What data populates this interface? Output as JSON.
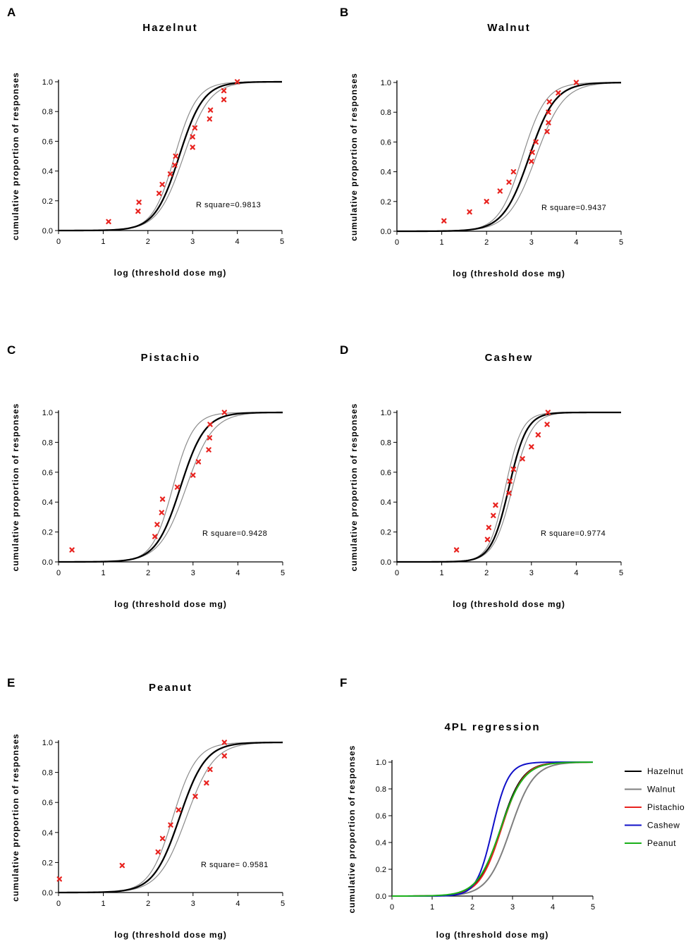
{
  "chart_data": [
    {
      "id": "A",
      "type": "scatter",
      "title": "Hazelnut",
      "xlabel": "log (threshold dose mg)",
      "ylabel": "cumulative proportion of responses",
      "xlim": [
        0,
        5
      ],
      "ylim": [
        0,
        1
      ],
      "xticks": [
        "0",
        "1",
        "2",
        "3",
        "4",
        "5"
      ],
      "yticks": [
        "0.0",
        "0.2",
        "0.4",
        "0.6",
        "0.8",
        "1.0"
      ],
      "annotation": "R square=0.9813",
      "fit": {
        "ec50": 2.7,
        "slope": 1.6
      },
      "ci": [
        {
          "ec50": 2.6,
          "slope": 1.75
        },
        {
          "ec50": 2.8,
          "slope": 1.5
        }
      ],
      "points": [
        {
          "x": 1.12,
          "y": 0.06
        },
        {
          "x": 1.78,
          "y": 0.13
        },
        {
          "x": 1.8,
          "y": 0.19
        },
        {
          "x": 2.25,
          "y": 0.25
        },
        {
          "x": 2.32,
          "y": 0.31
        },
        {
          "x": 2.5,
          "y": 0.38
        },
        {
          "x": 2.6,
          "y": 0.44
        },
        {
          "x": 2.62,
          "y": 0.5
        },
        {
          "x": 3.0,
          "y": 0.56
        },
        {
          "x": 3.0,
          "y": 0.63
        },
        {
          "x": 3.05,
          "y": 0.69
        },
        {
          "x": 3.38,
          "y": 0.75
        },
        {
          "x": 3.4,
          "y": 0.81
        },
        {
          "x": 3.7,
          "y": 0.88
        },
        {
          "x": 3.7,
          "y": 0.94
        },
        {
          "x": 4.0,
          "y": 1.0
        }
      ]
    },
    {
      "id": "B",
      "type": "scatter",
      "title": "Walnut",
      "xlabel": "log (threshold dose mg)",
      "ylabel": "cumulative proportion of responses",
      "xlim": [
        0,
        5
      ],
      "ylim": [
        0,
        1
      ],
      "xticks": [
        "0",
        "1",
        "2",
        "3",
        "4",
        "5"
      ],
      "yticks": [
        "0.0",
        "0.2",
        "0.4",
        "0.6",
        "0.8",
        "1.0"
      ],
      "annotation": "R square=0.9437",
      "fit": {
        "ec50": 2.95,
        "slope": 1.5
      },
      "ci": [
        {
          "ec50": 2.8,
          "slope": 1.65
        },
        {
          "ec50": 3.1,
          "slope": 1.4
        }
      ],
      "points": [
        {
          "x": 1.05,
          "y": 0.07
        },
        {
          "x": 1.62,
          "y": 0.13
        },
        {
          "x": 2.0,
          "y": 0.2
        },
        {
          "x": 2.3,
          "y": 0.27
        },
        {
          "x": 2.5,
          "y": 0.33
        },
        {
          "x": 2.6,
          "y": 0.4
        },
        {
          "x": 3.0,
          "y": 0.47
        },
        {
          "x": 3.02,
          "y": 0.53
        },
        {
          "x": 3.1,
          "y": 0.6
        },
        {
          "x": 3.35,
          "y": 0.67
        },
        {
          "x": 3.38,
          "y": 0.73
        },
        {
          "x": 3.38,
          "y": 0.8
        },
        {
          "x": 3.4,
          "y": 0.87
        },
        {
          "x": 3.6,
          "y": 0.93
        },
        {
          "x": 4.0,
          "y": 1.0
        }
      ]
    },
    {
      "id": "C",
      "type": "scatter",
      "title": "Pistachio",
      "xlabel": "log (threshold dose mg)",
      "ylabel": "cumulative proportion of responses",
      "xlim": [
        0,
        5
      ],
      "ylim": [
        0,
        1
      ],
      "xticks": [
        "0",
        "1",
        "2",
        "3",
        "4",
        "5"
      ],
      "yticks": [
        "0.0",
        "0.2",
        "0.4",
        "0.6",
        "0.8",
        "1.0"
      ],
      "annotation": "R square=0.9428",
      "fit": {
        "ec50": 2.72,
        "slope": 1.6
      },
      "ci": [
        {
          "ec50": 2.55,
          "slope": 1.9
        },
        {
          "ec50": 2.85,
          "slope": 1.45
        }
      ],
      "points": [
        {
          "x": 0.3,
          "y": 0.08
        },
        {
          "x": 2.15,
          "y": 0.17
        },
        {
          "x": 2.2,
          "y": 0.25
        },
        {
          "x": 2.3,
          "y": 0.33
        },
        {
          "x": 2.32,
          "y": 0.42
        },
        {
          "x": 2.65,
          "y": 0.5
        },
        {
          "x": 3.0,
          "y": 0.58
        },
        {
          "x": 3.12,
          "y": 0.67
        },
        {
          "x": 3.35,
          "y": 0.75
        },
        {
          "x": 3.37,
          "y": 0.83
        },
        {
          "x": 3.38,
          "y": 0.92
        },
        {
          "x": 3.7,
          "y": 1.0
        }
      ]
    },
    {
      "id": "D",
      "type": "scatter",
      "title": "Cashew",
      "xlabel": "log (threshold dose mg)",
      "ylabel": "cumulative proportion of responses",
      "xlim": [
        0,
        5
      ],
      "ylim": [
        0,
        1
      ],
      "xticks": [
        "0",
        "1",
        "2",
        "3",
        "4",
        "5"
      ],
      "yticks": [
        "0.0",
        "0.2",
        "0.4",
        "0.6",
        "0.8",
        "1.0"
      ],
      "annotation": "R square=0.9774",
      "fit": {
        "ec50": 2.5,
        "slope": 2.2
      },
      "ci": [
        {
          "ec50": 2.42,
          "slope": 2.35
        },
        {
          "ec50": 2.58,
          "slope": 2.05
        }
      ],
      "points": [
        {
          "x": 1.33,
          "y": 0.08
        },
        {
          "x": 2.02,
          "y": 0.15
        },
        {
          "x": 2.05,
          "y": 0.23
        },
        {
          "x": 2.15,
          "y": 0.31
        },
        {
          "x": 2.2,
          "y": 0.38
        },
        {
          "x": 2.5,
          "y": 0.46
        },
        {
          "x": 2.52,
          "y": 0.54
        },
        {
          "x": 2.6,
          "y": 0.62
        },
        {
          "x": 2.8,
          "y": 0.69
        },
        {
          "x": 3.0,
          "y": 0.77
        },
        {
          "x": 3.15,
          "y": 0.85
        },
        {
          "x": 3.35,
          "y": 0.92
        },
        {
          "x": 3.37,
          "y": 1.0
        }
      ]
    },
    {
      "id": "E",
      "type": "scatter",
      "title": "Peanut",
      "xlabel": "log (threshold dose mg)",
      "ylabel": "cumulative proportion of responses",
      "xlim": [
        0,
        5
      ],
      "ylim": [
        0,
        1
      ],
      "xticks": [
        "0",
        "1",
        "2",
        "3",
        "4",
        "5"
      ],
      "yticks": [
        "0.0",
        "0.2",
        "0.4",
        "0.6",
        "0.8",
        "1.0"
      ],
      "annotation": "R square= 0.9581",
      "fit": {
        "ec50": 2.7,
        "slope": 1.5
      },
      "ci": [
        {
          "ec50": 2.55,
          "slope": 1.65
        },
        {
          "ec50": 2.85,
          "slope": 1.4
        }
      ],
      "points": [
        {
          "x": 0.02,
          "y": 0.09
        },
        {
          "x": 1.42,
          "y": 0.18
        },
        {
          "x": 2.22,
          "y": 0.27
        },
        {
          "x": 2.32,
          "y": 0.36
        },
        {
          "x": 2.5,
          "y": 0.45
        },
        {
          "x": 2.68,
          "y": 0.55
        },
        {
          "x": 3.05,
          "y": 0.64
        },
        {
          "x": 3.3,
          "y": 0.73
        },
        {
          "x": 3.38,
          "y": 0.82
        },
        {
          "x": 3.7,
          "y": 0.91
        },
        {
          "x": 3.7,
          "y": 1.0
        }
      ]
    },
    {
      "id": "F",
      "type": "line",
      "title": "4PL regression",
      "xlabel": "log (threshold dose mg)",
      "ylabel": "cumulative proportion of responses",
      "xlim": [
        0,
        5
      ],
      "ylim": [
        0,
        1
      ],
      "xticks": [
        "0",
        "1",
        "2",
        "3",
        "4",
        "5"
      ],
      "yticks": [
        "0.0",
        "0.2",
        "0.4",
        "0.6",
        "0.8",
        "1.0"
      ],
      "legend_position": "right",
      "series": [
        {
          "name": "Hazelnut",
          "color": "#000000",
          "ec50": 2.7,
          "slope": 1.6
        },
        {
          "name": "Walnut",
          "color": "#7f7f7f",
          "ec50": 2.95,
          "slope": 1.5
        },
        {
          "name": "Pistachio",
          "color": "#e8231f",
          "ec50": 2.72,
          "slope": 1.6
        },
        {
          "name": "Cashew",
          "color": "#1010c8",
          "ec50": 2.5,
          "slope": 2.2
        },
        {
          "name": "Peanut",
          "color": "#1ab01a",
          "ec50": 2.7,
          "slope": 1.5
        }
      ]
    }
  ]
}
